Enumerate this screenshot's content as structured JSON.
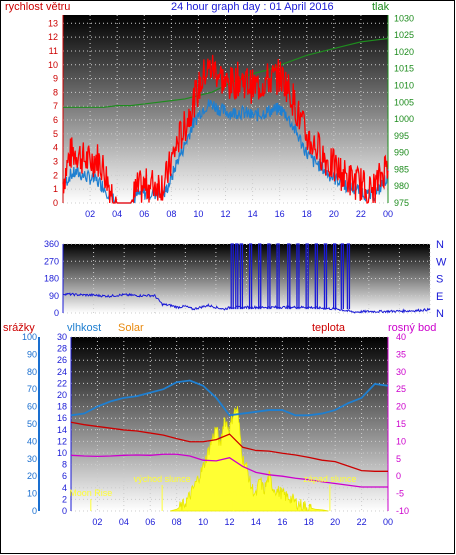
{
  "header": {
    "title": "24 hour graph day : 01 April 2016",
    "left_label": "rychlost větru",
    "right_label": "tlak"
  },
  "colors": {
    "wind": "#ff0000",
    "gust": "#1f7fd0",
    "pressure": "#1e8c1e",
    "direction": "#1a1ad6",
    "humidity": "#1f7fd0",
    "temperature": "#cc0000",
    "dewpoint": "#cc00cc",
    "solar": "#ffff33",
    "left_axis_top": "#cc0000",
    "right_axis_top": "#1e8c1e",
    "rain_axis": "#1a6fd0",
    "dir_axis": "#1a1ad6"
  },
  "chart_data": [
    {
      "type": "line",
      "title": "24 hour graph day : 01 April 2016",
      "x_tick_labels": [
        "02",
        "04",
        "06",
        "08",
        "10",
        "12",
        "14",
        "16",
        "18",
        "20",
        "22",
        "00"
      ],
      "left_axis": {
        "label": "rychlost větru",
        "ticks": [
          0,
          1,
          2,
          3,
          4,
          5,
          6,
          7,
          8,
          9,
          10,
          11,
          12,
          13
        ],
        "range": [
          0,
          13.6
        ]
      },
      "right_axis": {
        "label": "tlak",
        "ticks": [
          975,
          980,
          985,
          990,
          995,
          1000,
          1005,
          1010,
          1015,
          1020,
          1025,
          1030
        ],
        "range": [
          975,
          1031
        ]
      },
      "series": [
        {
          "name": "wind",
          "axis": "left",
          "x": [
            0,
            0.5,
            1,
            1.5,
            2,
            2.5,
            3,
            3.5,
            4,
            4.5,
            5,
            5.5,
            6,
            6.5,
            7,
            7.5,
            8,
            8.5,
            9,
            9.5,
            10,
            10.5,
            11,
            11.5,
            12,
            12.5,
            13,
            13.5,
            14,
            14.5,
            15,
            15.5,
            16,
            16.5,
            17,
            17.5,
            18,
            18.5,
            19,
            19.5,
            20,
            20.5,
            21,
            21.5,
            22,
            22.5,
            23,
            23.5,
            24
          ],
          "y": [
            1.5,
            3.5,
            3.7,
            3.2,
            3.0,
            3.3,
            2.5,
            1.0,
            0,
            0,
            0,
            1.0,
            1.2,
            1.3,
            1.4,
            1.4,
            3.0,
            4.5,
            5.5,
            7.0,
            8.2,
            9.5,
            9.8,
            9.4,
            8.6,
            8.6,
            9.0,
            8.8,
            8.4,
            8.5,
            8.9,
            9.0,
            9.2,
            8.6,
            7.5,
            6.0,
            4.8,
            4.2,
            3.8,
            3.0,
            2.6,
            2.2,
            1.8,
            1.5,
            1.4,
            0.8,
            1.0,
            2.0,
            3.0
          ]
        },
        {
          "name": "gust",
          "axis": "left",
          "x": [
            0,
            0.5,
            1,
            1.5,
            2,
            2.5,
            3,
            3.5,
            4,
            4.5,
            5,
            5.5,
            6,
            6.5,
            7,
            7.5,
            8,
            8.5,
            9,
            9.5,
            10,
            10.5,
            11,
            11.5,
            12,
            12.5,
            13,
            13.5,
            14,
            14.5,
            15,
            15.5,
            16,
            16.5,
            17,
            17.5,
            18,
            18.5,
            19,
            19.5,
            20,
            20.5,
            21,
            21.5,
            22,
            22.5,
            23,
            23.5,
            24
          ],
          "y": [
            1.2,
            2.0,
            2.2,
            2.0,
            1.8,
            1.6,
            1.2,
            0.5,
            0,
            0,
            0,
            0.6,
            0.7,
            0.7,
            0.7,
            0.7,
            1.8,
            3.2,
            4.2,
            5.5,
            6.4,
            7.0,
            7.2,
            6.8,
            6.6,
            6.5,
            6.6,
            6.5,
            6.3,
            6.4,
            6.6,
            6.7,
            6.8,
            6.4,
            5.5,
            4.6,
            3.6,
            3.0,
            2.7,
            2.2,
            1.8,
            1.6,
            1.2,
            1.0,
            0.9,
            0.5,
            0.6,
            1.2,
            2.0
          ]
        },
        {
          "name": "pressure",
          "axis": "right",
          "x": [
            0,
            1,
            2,
            3,
            4,
            5,
            6,
            7,
            8,
            9,
            10,
            11,
            12,
            13,
            14,
            15,
            16,
            17,
            18,
            19,
            20,
            21,
            22,
            23,
            24
          ],
          "y": [
            1003.5,
            1003.5,
            1003.5,
            1003.5,
            1004,
            1004,
            1004.5,
            1005,
            1005.5,
            1006,
            1007,
            1008,
            1010,
            1012,
            1013.5,
            1014.5,
            1016,
            1017.5,
            1019,
            1020,
            1021,
            1022,
            1023,
            1023.5,
            1024
          ]
        }
      ]
    },
    {
      "type": "line",
      "x_tick_labels": [],
      "left_axis": {
        "ticks": [
          0,
          90,
          180,
          270,
          360
        ],
        "range": [
          0,
          360
        ]
      },
      "right_axis": {
        "ticks": [
          "N",
          "W",
          "S",
          "E",
          "N"
        ]
      },
      "series": [
        {
          "name": "direction",
          "x": [
            0,
            1,
            2,
            2.5,
            3,
            3.5,
            4,
            4.5,
            5,
            5.5,
            6,
            6.5,
            7,
            7.5,
            8,
            8.5,
            9,
            9.5,
            10,
            10.5,
            11,
            12,
            13,
            14,
            15,
            16,
            17,
            18,
            19,
            20,
            21,
            22,
            23,
            24
          ],
          "y": [
            100,
            95,
            93,
            90,
            88,
            92,
            95,
            93,
            90,
            92,
            90,
            45,
            40,
            30,
            35,
            20,
            30,
            40,
            30,
            20,
            30,
            30,
            30,
            30,
            30,
            30,
            25,
            20,
            5,
            8,
            8,
            10,
            12,
            18
          ]
        }
      ],
      "spikes_360_hours": [
        11.0,
        11.3,
        11.6,
        12.2,
        12.8,
        13.4,
        14.0,
        14.7,
        15.3,
        15.9,
        16.5,
        17.1,
        17.7,
        18.2,
        18.6
      ]
    },
    {
      "type": "line",
      "x_tick_labels": [
        "02",
        "04",
        "06",
        "08",
        "10",
        "12",
        "14",
        "16",
        "18",
        "20",
        "22",
        "00"
      ],
      "left_axis_outer": {
        "label": "srážky",
        "ticks": [
          0,
          10,
          20,
          30,
          40,
          50,
          60,
          70,
          80,
          90,
          100
        ],
        "range": [
          0,
          100
        ]
      },
      "left_axis_inner": {
        "label": "vlhkost",
        "ticks": [
          0,
          2,
          4,
          6,
          8,
          10,
          12,
          14,
          16,
          18,
          20,
          22,
          24,
          26,
          28,
          30
        ],
        "range": [
          0,
          30
        ]
      },
      "right_axis": {
        "label": "teplota",
        "ticks": [
          -10,
          -5,
          0,
          5,
          10,
          15,
          20,
          25,
          30,
          35,
          40
        ],
        "range": [
          -10,
          40
        ]
      },
      "series_labels": {
        "solar": "Solar",
        "dewpoint": "rosný bod"
      },
      "series": [
        {
          "name": "humidity",
          "axis": "outer",
          "x": [
            0,
            1,
            2,
            3,
            4,
            5,
            6,
            7,
            8,
            9,
            10,
            11,
            12,
            13,
            14,
            15,
            16,
            17,
            18,
            19,
            20,
            21,
            22,
            23,
            24
          ],
          "y": [
            55,
            56,
            60,
            63,
            65,
            66,
            68,
            70,
            74,
            75,
            72,
            65,
            55,
            56,
            57,
            58,
            58,
            55,
            55,
            56,
            58,
            62,
            65,
            73,
            72
          ]
        },
        {
          "name": "temperature",
          "axis": "right",
          "x": [
            0,
            1,
            2,
            3,
            4,
            5,
            6,
            7,
            8,
            9,
            10,
            11,
            12,
            13,
            14,
            15,
            16,
            17,
            18,
            19,
            20,
            21,
            22,
            23,
            24
          ],
          "y": [
            15.5,
            14.8,
            14.3,
            13.8,
            13.3,
            13.0,
            12.4,
            11.8,
            10.8,
            9.9,
            9.9,
            10.5,
            12.1,
            8.3,
            7.4,
            7.2,
            6.6,
            6.1,
            5.4,
            4.6,
            4.2,
            2.9,
            1.6,
            1.4,
            1.4
          ]
        },
        {
          "name": "dewpoint",
          "axis": "right",
          "x": [
            0,
            1,
            2,
            3,
            4,
            5,
            6,
            7,
            8,
            9,
            10,
            11,
            12,
            13,
            14,
            15,
            16,
            17,
            18,
            19,
            20,
            21,
            22,
            23,
            24
          ],
          "y": [
            6.0,
            5.8,
            5.7,
            5.8,
            6.0,
            6.1,
            6.0,
            6.3,
            6.3,
            5.8,
            4.6,
            4.4,
            5.3,
            2.8,
            1.1,
            0.4,
            0.0,
            -0.6,
            -1.0,
            -1.6,
            -2.1,
            -2.6,
            -3.1,
            -3.1,
            -3.1
          ]
        },
        {
          "name": "solar",
          "axis": "inner",
          "x": [
            7.5,
            8,
            8.5,
            9,
            9.5,
            10,
            10.5,
            11,
            11.3,
            11.6,
            12,
            12.3,
            12.6,
            13,
            13.3,
            13.6,
            14,
            14.3,
            14.6,
            15,
            15.3,
            15.6,
            16,
            16.3,
            16.6,
            17,
            17.5,
            18,
            18.5,
            19,
            19.5
          ],
          "y": [
            0,
            0.3,
            1.0,
            2.6,
            5.0,
            7.5,
            11.0,
            14.5,
            11.0,
            16.0,
            14.0,
            17.0,
            17.5,
            9.0,
            7.5,
            4.5,
            2.6,
            5.5,
            3.5,
            6.0,
            4.0,
            3.5,
            3.0,
            2.5,
            2.3,
            1.5,
            1.0,
            0.6,
            0.3,
            0.2,
            0
          ]
        }
      ],
      "annotations": [
        {
          "text": "Moon Rise",
          "hour": 1.5
        },
        {
          "text": "východ slunce",
          "hour": 6.9
        },
        {
          "text": "Moon Set",
          "hour": 12.3
        },
        {
          "text": "západ slunce",
          "hour": 19.6
        }
      ]
    }
  ]
}
